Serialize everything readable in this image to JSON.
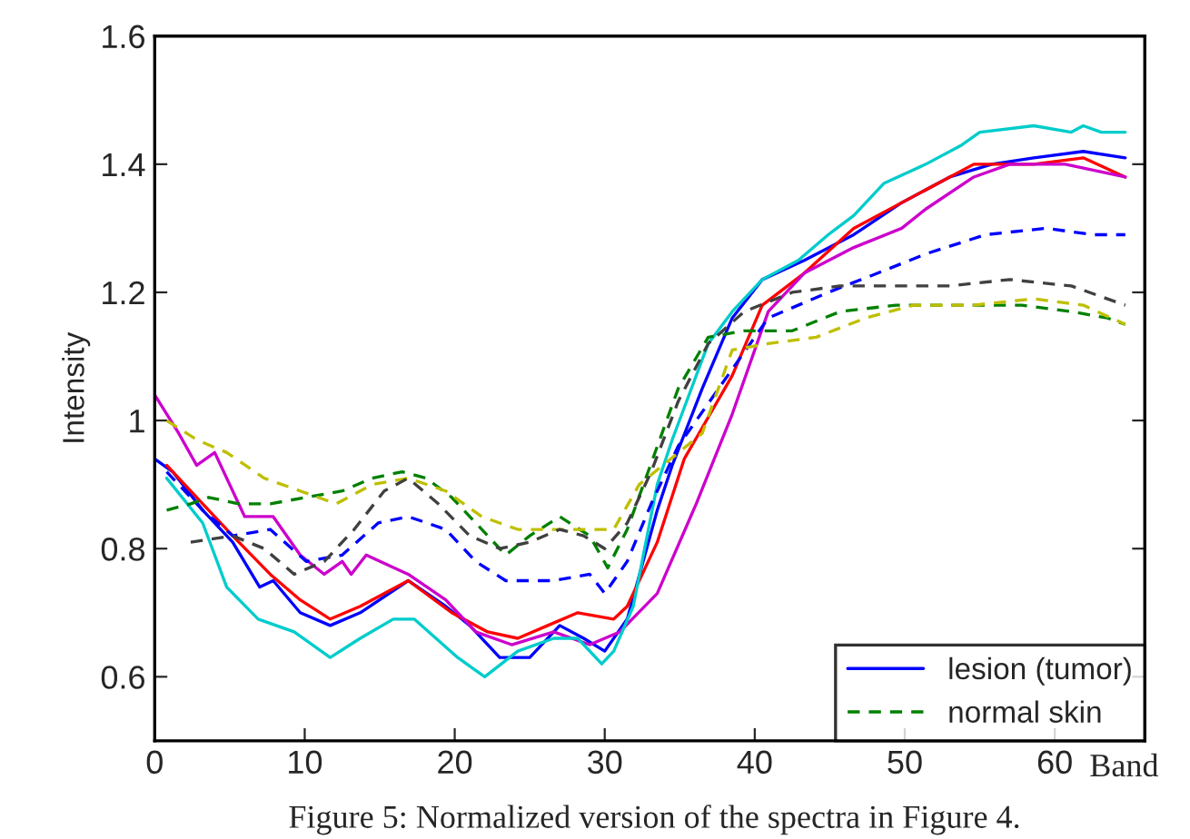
{
  "chart_data": {
    "type": "line",
    "xlabel": "Band",
    "ylabel": "Intensity",
    "annotations": [
      "Figure 5: Normalized version of the spectra in Figure 4."
    ],
    "xlim": [
      0,
      66
    ],
    "xticks": [
      0,
      10,
      20,
      30,
      40,
      50,
      60
    ],
    "ylim": [
      0.5,
      1.6
    ],
    "yticks": [
      0.6,
      0.8,
      1,
      1.2,
      1.4,
      1.6
    ],
    "grid": false,
    "legend": "bottom right",
    "marker": "none",
    "series": [
      {
        "name": "lesion (tumor)",
        "color": "#0000ff",
        "line_style": "solid",
        "x": [
          0,
          1.2,
          3.2,
          5.2,
          7,
          7.9,
          9.7,
          11.7,
          13.7,
          16.9,
          19.4,
          21,
          23,
          25,
          27,
          28.6,
          30,
          31.5,
          33.5,
          34.5,
          36.5,
          38.5,
          40.5,
          43.3,
          46.6,
          49.8,
          53,
          55.8,
          58.6,
          61.9,
          64.7
        ],
        "values": [
          0.94,
          0.92,
          0.86,
          0.81,
          0.74,
          0.75,
          0.7,
          0.68,
          0.7,
          0.75,
          0.71,
          0.68,
          0.63,
          0.63,
          0.68,
          0.66,
          0.64,
          0.69,
          0.86,
          0.93,
          1.05,
          1.16,
          1.22,
          1.25,
          1.29,
          1.34,
          1.38,
          1.4,
          1.41,
          1.42,
          1.41
        ]
      },
      {
        "color": "#ff0000",
        "line_style": "solid",
        "x": [
          0.8,
          3.2,
          5.2,
          7.7,
          9.7,
          11.7,
          13.7,
          16.9,
          19.8,
          22.2,
          24.2,
          26.2,
          28.2,
          30.6,
          31.5,
          33.5,
          35.3,
          38.5,
          40.5,
          43.3,
          46.6,
          50.6,
          54.6,
          58.6,
          61.9,
          64.7
        ],
        "values": [
          0.93,
          0.87,
          0.82,
          0.76,
          0.72,
          0.69,
          0.71,
          0.75,
          0.7,
          0.67,
          0.66,
          0.68,
          0.7,
          0.69,
          0.71,
          0.81,
          0.94,
          1.07,
          1.18,
          1.23,
          1.3,
          1.35,
          1.4,
          1.4,
          1.41,
          1.38
        ]
      },
      {
        "color": "#cc00cc",
        "line_style": "solid",
        "x": [
          0,
          1.6,
          2.8,
          4,
          6,
          7.9,
          9.7,
          11.3,
          12.5,
          13.1,
          14.1,
          16.9,
          19.4,
          21.4,
          23.8,
          26.6,
          29,
          31,
          33.5,
          36.1,
          38.5,
          40.9,
          43.3,
          46.6,
          49.8,
          51.4,
          54.6,
          57,
          60.7,
          64.7
        ],
        "values": [
          1.04,
          0.98,
          0.93,
          0.95,
          0.85,
          0.85,
          0.79,
          0.76,
          0.78,
          0.76,
          0.79,
          0.76,
          0.72,
          0.67,
          0.65,
          0.67,
          0.65,
          0.67,
          0.73,
          0.87,
          1.01,
          1.17,
          1.23,
          1.27,
          1.3,
          1.33,
          1.38,
          1.4,
          1.4,
          1.38
        ]
      },
      {
        "color": "#00cccc",
        "line_style": "solid",
        "x": [
          0.8,
          3.2,
          4.8,
          6.9,
          9.3,
          11.7,
          13.7,
          15.9,
          17.3,
          20.2,
          22,
          24.2,
          26.6,
          28.2,
          29.8,
          30.6,
          31.9,
          33.5,
          34.5,
          36.9,
          38.5,
          40.5,
          42.9,
          44.9,
          46.6,
          48.6,
          51.4,
          53.8,
          55,
          58.6,
          61.1,
          61.9,
          63.1,
          64.7
        ],
        "values": [
          0.91,
          0.84,
          0.74,
          0.69,
          0.67,
          0.63,
          0.66,
          0.69,
          0.69,
          0.63,
          0.6,
          0.64,
          0.66,
          0.66,
          0.62,
          0.64,
          0.71,
          0.9,
          0.97,
          1.12,
          1.17,
          1.22,
          1.25,
          1.29,
          1.32,
          1.37,
          1.4,
          1.43,
          1.45,
          1.46,
          1.45,
          1.46,
          1.45,
          1.45
        ]
      },
      {
        "color": "#0000ff",
        "line_style": "dashed",
        "x": [
          0.8,
          3.2,
          5.2,
          7.7,
          10.1,
          12.5,
          14.9,
          16.9,
          19.4,
          21.4,
          23.4,
          26.6,
          29,
          30,
          31.5,
          33.1,
          34.9,
          38.5,
          40.9,
          44.9,
          48.2,
          51.4,
          55.4,
          59.4,
          62.6,
          64.7
        ],
        "values": [
          0.92,
          0.86,
          0.82,
          0.83,
          0.78,
          0.79,
          0.84,
          0.85,
          0.83,
          0.78,
          0.75,
          0.75,
          0.76,
          0.73,
          0.78,
          0.87,
          0.96,
          1.08,
          1.16,
          1.2,
          1.23,
          1.26,
          1.29,
          1.3,
          1.29,
          1.29
        ]
      },
      {
        "name": "normal skin",
        "color": "#008000",
        "line_style": "dashed",
        "x": [
          0.8,
          2.4,
          3.6,
          5.6,
          7.7,
          10.1,
          12.5,
          14.5,
          16.5,
          18.1,
          19.8,
          21.4,
          23.4,
          25,
          27,
          29,
          30.2,
          31.5,
          34.9,
          36.9,
          39.3,
          42.5,
          45.7,
          49.4,
          53.8,
          57.8,
          61.1,
          63.5,
          64.7
        ],
        "values": [
          0.86,
          0.87,
          0.88,
          0.87,
          0.87,
          0.88,
          0.89,
          0.91,
          0.92,
          0.91,
          0.88,
          0.84,
          0.79,
          0.82,
          0.85,
          0.82,
          0.77,
          0.83,
          1.05,
          1.13,
          1.14,
          1.14,
          1.17,
          1.18,
          1.18,
          1.18,
          1.17,
          1.16,
          1.15
        ]
      },
      {
        "color": "#bfbf00",
        "line_style": "dashed",
        "x": [
          0.8,
          2.8,
          4.8,
          7.3,
          9.7,
          12.1,
          14.5,
          16.9,
          19.4,
          21.8,
          24.2,
          26.6,
          29,
          30.6,
          32.3,
          36.5,
          38.5,
          40.9,
          44.1,
          47.4,
          50.6,
          54.6,
          58.6,
          61.9,
          64.7
        ],
        "values": [
          1.0,
          0.97,
          0.95,
          0.91,
          0.89,
          0.87,
          0.9,
          0.91,
          0.89,
          0.85,
          0.83,
          0.83,
          0.83,
          0.83,
          0.9,
          0.98,
          1.11,
          1.12,
          1.13,
          1.16,
          1.18,
          1.18,
          1.19,
          1.18,
          1.15
        ]
      },
      {
        "color": "#404040",
        "line_style": "dashed",
        "x": [
          2.4,
          5.2,
          7.3,
          9.3,
          11.3,
          13.3,
          15.3,
          16.9,
          18.9,
          21,
          23,
          25,
          27,
          28.6,
          30,
          31.5,
          33.1,
          34.9,
          36.9,
          39.3,
          42.5,
          45.7,
          48.9,
          53,
          57,
          61.1,
          64.7
        ],
        "values": [
          0.81,
          0.82,
          0.8,
          0.76,
          0.78,
          0.83,
          0.89,
          0.91,
          0.87,
          0.82,
          0.8,
          0.81,
          0.83,
          0.82,
          0.8,
          0.84,
          0.92,
          1.03,
          1.12,
          1.17,
          1.2,
          1.21,
          1.21,
          1.21,
          1.22,
          1.21,
          1.18
        ]
      }
    ]
  }
}
